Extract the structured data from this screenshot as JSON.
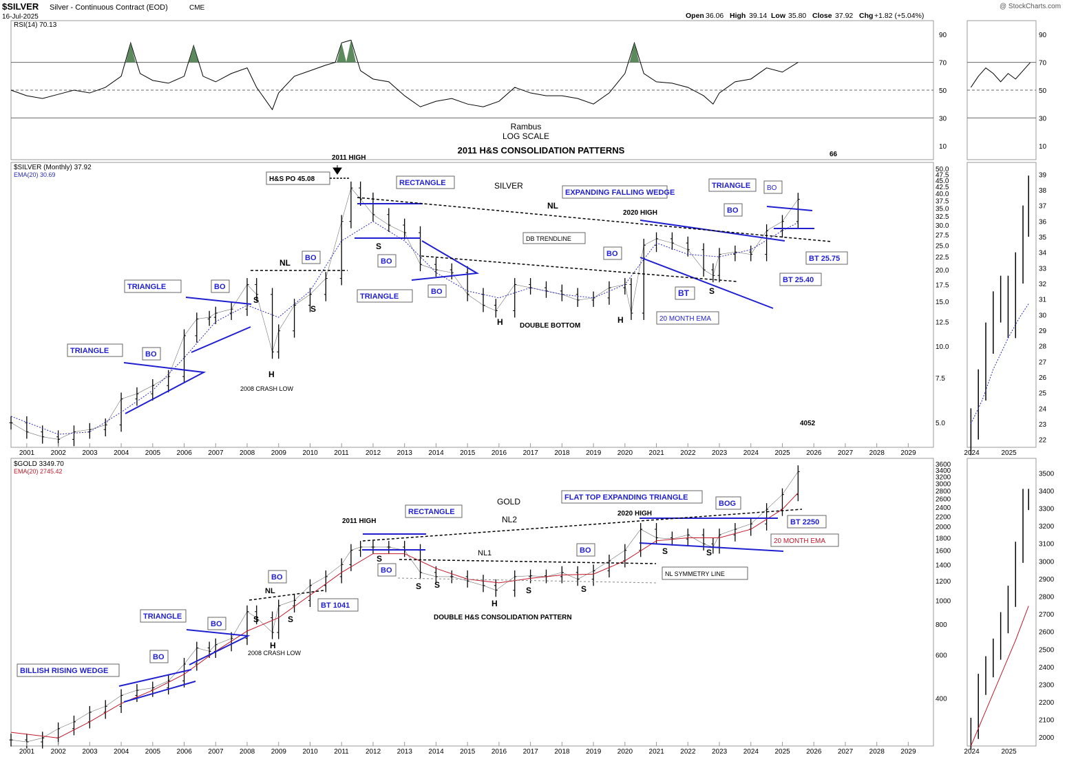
{
  "header": {
    "ticker": "$SILVER",
    "description": "Silver - Continuous Contract (EOD)",
    "exchange": "CME",
    "date": "16-Jul-2025",
    "watermark": "@ StockCharts.com",
    "open_label": "Open",
    "open": "36.06",
    "high_label": "High",
    "high": "39.14",
    "low_label": "Low",
    "low": "35.80",
    "close_label": "Close",
    "close": "37.92",
    "chg_label": "Chg",
    "chg": "+1.82 (+5.04%)"
  },
  "colors": {
    "pattern": "#1f1fd0",
    "silver_ema": "#2a2ab8",
    "gold_ema": "#c0182a",
    "rsi_fill": "#5c8a5c",
    "price": "#000000"
  },
  "chart_data": [
    {
      "id": "rsi",
      "type": "line",
      "legend": "RSI(14) 70.13",
      "y_ticks": [
        "90",
        "70",
        "50",
        "30",
        "10"
      ],
      "ylim": [
        0,
        100
      ],
      "reference_lines": [
        70,
        50,
        30
      ],
      "title_lines": [
        "Rambus",
        "LOG SCALE",
        "2011 H&S CONSOLIDATION PATTERNS"
      ],
      "side_note": "66",
      "x": [
        2000.5,
        2001,
        2001.5,
        2002,
        2002.5,
        2003,
        2003.5,
        2004,
        2004.3,
        2004.6,
        2005,
        2005.5,
        2006,
        2006.3,
        2006.6,
        2007,
        2007.5,
        2008,
        2008.3,
        2008.8,
        2009,
        2009.5,
        2010,
        2010.5,
        2010.8,
        2011,
        2011.3,
        2011.6,
        2012,
        2012.5,
        2013,
        2013.5,
        2014,
        2014.5,
        2015,
        2015.5,
        2016,
        2016.5,
        2017,
        2017.5,
        2018,
        2018.5,
        2019,
        2019.5,
        2020,
        2020.3,
        2020.6,
        2021,
        2021.5,
        2022,
        2022.5,
        2022.8,
        2023,
        2023.5,
        2024,
        2024.5,
        2025,
        2025.5
      ],
      "y": [
        50,
        46,
        44,
        47,
        50,
        48,
        52,
        60,
        84,
        62,
        57,
        55,
        60,
        82,
        60,
        56,
        62,
        66,
        52,
        36,
        48,
        60,
        64,
        68,
        70,
        84,
        86,
        64,
        58,
        56,
        46,
        38,
        42,
        44,
        40,
        38,
        42,
        52,
        48,
        46,
        46,
        44,
        40,
        48,
        62,
        84,
        62,
        56,
        55,
        52,
        46,
        40,
        48,
        56,
        58,
        66,
        63,
        70
      ]
    },
    {
      "id": "silver",
      "type": "ohlc",
      "legend": "$SILVER (Monthly) 37.92",
      "ema_legend": "EMA(20) 30.69",
      "log_scale": true,
      "y_ticks": [
        "50.0",
        "47.5",
        "45.0",
        "42.5",
        "40.0",
        "37.5",
        "35.0",
        "32.5",
        "30.0",
        "27.5",
        "25.0",
        "22.5",
        "20.0",
        "17.5",
        "15.0",
        "12.5",
        "10.0",
        "7.5",
        "5.0"
      ],
      "x_ticks": [
        "2001",
        "2002",
        "2003",
        "2004",
        "2005",
        "2006",
        "2007",
        "2008",
        "2009",
        "2010",
        "2011",
        "2012",
        "2013",
        "2014",
        "2015",
        "2016",
        "2017",
        "2018",
        "2019",
        "2020",
        "2021",
        "2022",
        "2023",
        "2024",
        "2025",
        "2026",
        "2027",
        "2028",
        "2029"
      ],
      "side_note": "4052",
      "x": [
        2000.5,
        2001,
        2001.5,
        2002,
        2002.5,
        2003,
        2003.5,
        2004,
        2004.5,
        2005,
        2005.5,
        2006,
        2006.4,
        2006.8,
        2007,
        2007.5,
        2008,
        2008.3,
        2008.8,
        2009,
        2009.5,
        2010,
        2010.5,
        2011,
        2011.3,
        2011.6,
        2012,
        2012.5,
        2013,
        2013.5,
        2014,
        2014.5,
        2015,
        2015.5,
        2015.9,
        2016.5,
        2017,
        2017.5,
        2018,
        2018.5,
        2019,
        2019.5,
        2020,
        2020.2,
        2020.6,
        2021,
        2021.5,
        2022,
        2022.5,
        2022.8,
        2023,
        2023.5,
        2024,
        2024.5,
        2025,
        2025.5
      ],
      "y": [
        5.0,
        4.6,
        4.4,
        4.3,
        4.6,
        4.7,
        4.9,
        6.2,
        6.5,
        7.0,
        7.6,
        11.0,
        12.8,
        13.0,
        13.5,
        14.0,
        17.5,
        16.0,
        9.5,
        11.5,
        14.5,
        16.0,
        18.5,
        31.0,
        42.0,
        38.0,
        33.0,
        30.0,
        28.0,
        21.0,
        20.0,
        19.5,
        16.0,
        14.5,
        13.8,
        17.5,
        17.0,
        16.5,
        16.0,
        15.2,
        15.5,
        17.0,
        17.5,
        13.5,
        25.0,
        26.5,
        25.5,
        24.0,
        20.0,
        19.0,
        23.0,
        23.5,
        23.0,
        28.5,
        31.0,
        37.92
      ],
      "ema_x": [
        2000.5,
        2002,
        2003,
        2004,
        2005,
        2006,
        2007,
        2008,
        2009,
        2010,
        2011,
        2012,
        2013,
        2014,
        2015,
        2016,
        2017,
        2018,
        2019,
        2020,
        2020.6,
        2021,
        2022,
        2023,
        2024,
        2025,
        2025.5
      ],
      "ema_y": [
        5.3,
        4.5,
        4.6,
        5.5,
        6.7,
        9.0,
        12.5,
        14.5,
        13.0,
        16.5,
        26.0,
        31.0,
        26.0,
        19.5,
        16.5,
        15.5,
        17.0,
        16.0,
        15.5,
        17.5,
        22.0,
        25.5,
        23.0,
        22.5,
        24.0,
        28.5,
        30.69
      ]
    },
    {
      "id": "gold",
      "type": "ohlc",
      "legend": "$GOLD 3349.70",
      "ema_legend": "EMA(20) 2745.42",
      "log_scale": true,
      "y_ticks": [
        "3600",
        "3400",
        "3200",
        "3000",
        "2800",
        "2600",
        "2400",
        "2200",
        "2000",
        "1800",
        "1600",
        "1400",
        "1200",
        "1000",
        "800",
        "600",
        "400"
      ],
      "x_ticks": [
        "2001",
        "2002",
        "2003",
        "2004",
        "2005",
        "2006",
        "2007",
        "2008",
        "2009",
        "2010",
        "2011",
        "2012",
        "2013",
        "2014",
        "2015",
        "2016",
        "2017",
        "2018",
        "2019",
        "2020",
        "2021",
        "2022",
        "2023",
        "2024",
        "2025",
        "2026",
        "2027",
        "2028",
        "2029"
      ],
      "x": [
        2000.5,
        2001,
        2001.5,
        2002,
        2002.5,
        2003,
        2003.5,
        2004,
        2004.5,
        2005,
        2005.5,
        2006,
        2006.4,
        2006.8,
        2007,
        2007.5,
        2008,
        2008.3,
        2008.8,
        2009,
        2009.5,
        2010,
        2010.5,
        2011,
        2011.3,
        2011.6,
        2012,
        2012.5,
        2013,
        2013.5,
        2014,
        2014.5,
        2015,
        2015.5,
        2015.9,
        2016.5,
        2017,
        2017.5,
        2018,
        2018.5,
        2019,
        2019.5,
        2020,
        2020.5,
        2021,
        2021.5,
        2022,
        2022.5,
        2022.8,
        2023,
        2023.5,
        2024,
        2024.5,
        2025,
        2025.5
      ],
      "y": [
        270,
        265,
        275,
        300,
        320,
        350,
        370,
        410,
        430,
        440,
        470,
        550,
        640,
        620,
        660,
        700,
        900,
        850,
        740,
        950,
        1000,
        1150,
        1250,
        1400,
        1600,
        1650,
        1650,
        1650,
        1600,
        1300,
        1250,
        1250,
        1200,
        1150,
        1100,
        1250,
        1260,
        1250,
        1300,
        1220,
        1320,
        1450,
        1600,
        1950,
        1800,
        1780,
        1850,
        1700,
        1650,
        1850,
        1950,
        2050,
        2350,
        2700,
        3349.7
      ],
      "ema_x": [
        2000.5,
        2002,
        2003,
        2004,
        2005,
        2006,
        2007,
        2008,
        2009,
        2010,
        2011,
        2012,
        2013,
        2014,
        2015,
        2016,
        2017,
        2018,
        2019,
        2020,
        2021,
        2022,
        2023,
        2024,
        2025,
        2025.5
      ],
      "ema_y": [
        290,
        275,
        320,
        380,
        430,
        500,
        620,
        750,
        850,
        1050,
        1300,
        1550,
        1550,
        1350,
        1220,
        1180,
        1230,
        1270,
        1280,
        1450,
        1750,
        1800,
        1800,
        1950,
        2350,
        2745.42
      ]
    }
  ],
  "inset_rsi": {
    "y_ticks": [
      "90",
      "70",
      "50",
      "30",
      "10"
    ]
  },
  "inset_silver": {
    "y_ticks": [
      "39",
      "38",
      "37",
      "36",
      "35",
      "34",
      "33",
      "32",
      "31",
      "30",
      "29",
      "28",
      "27",
      "26",
      "25",
      "24",
      "23",
      "22"
    ],
    "x_ticks": [
      "2024",
      "2025"
    ],
    "x": [
      2024.0,
      2024.2,
      2024.4,
      2024.6,
      2024.8,
      2025.0,
      2025.2,
      2025.4,
      2025.55
    ],
    "y": [
      23.0,
      25.5,
      28.5,
      30.5,
      31.5,
      29.5,
      33.0,
      36.0,
      37.92
    ],
    "ema_x": [
      2024.0,
      2024.3,
      2024.6,
      2025.0,
      2025.3,
      2025.55
    ],
    "ema_y": [
      23.0,
      24.5,
      26.5,
      28.5,
      29.8,
      30.7
    ]
  },
  "inset_gold": {
    "y_ticks": [
      "3500",
      "3400",
      "3300",
      "3200",
      "3100",
      "3000",
      "2900",
      "2800",
      "2700",
      "2600",
      "2500",
      "2400",
      "2300",
      "2200",
      "2100",
      "2000"
    ],
    "x_ticks": [
      "2024",
      "2025"
    ],
    "x": [
      2024.0,
      2024.2,
      2024.4,
      2024.6,
      2024.8,
      2025.0,
      2025.2,
      2025.4,
      2025.55
    ],
    "y": [
      2050,
      2300,
      2400,
      2500,
      2650,
      2800,
      3050,
      3350,
      3349.7
    ],
    "ema_x": [
      2024.0,
      2024.4,
      2024.8,
      2025.2,
      2025.55
    ],
    "ema_y": [
      1950,
      2150,
      2350,
      2550,
      2745
    ]
  },
  "annotations": {
    "silver": {
      "title": "SILVER",
      "hs_po": "H&S PO 45.08",
      "high_2011": "2011 HIGH",
      "high_2020": "2020 HIGH",
      "nl": "NL",
      "nl2": "NL",
      "rectangle": "RECTANGLE",
      "triangle1": "TRIANGLE",
      "triangle2": "TRIANGLE",
      "triangle3": "TRIANGLE",
      "triangle4": "TRIANGLE",
      "efw": "EXPANDING FALLING WEDGE",
      "db_trendline": "DB TRENDLINE",
      "double_bottom": "DOUBLE BOTTOM",
      "crash_low": "2008 CRASH LOW",
      "ema20": "20 MONTH EMA",
      "bt2575": "BT 25.75",
      "bt2540": "BT 25.40",
      "bt": "BT",
      "bo": "BO",
      "s": "S",
      "h": "H"
    },
    "gold": {
      "title": "GOLD",
      "high_2011": "2011 HIGH",
      "high_2020": "2020 HIGH",
      "rectangle": "RECTANGLE",
      "triangle": "TRIANGLE",
      "brw": "BILLISH RISING WEDGE",
      "ftet": "FLAT TOP EXPANDING TRIANGLE",
      "nl": "NL",
      "nl1": "NL1",
      "nl2": "NL2",
      "bt1041": "BT 1041",
      "bt2250": "BT 2250",
      "bog": "BOG",
      "nl_sym": "NL SYMMETRY LINE",
      "ema20": "20 MONTH EMA",
      "dhs": "DOUBLE H&S CONSOLIDATION PATTERN",
      "crash_low": "2008 CRASH LOW",
      "bo": "BO",
      "s": "S",
      "h": "H"
    }
  }
}
